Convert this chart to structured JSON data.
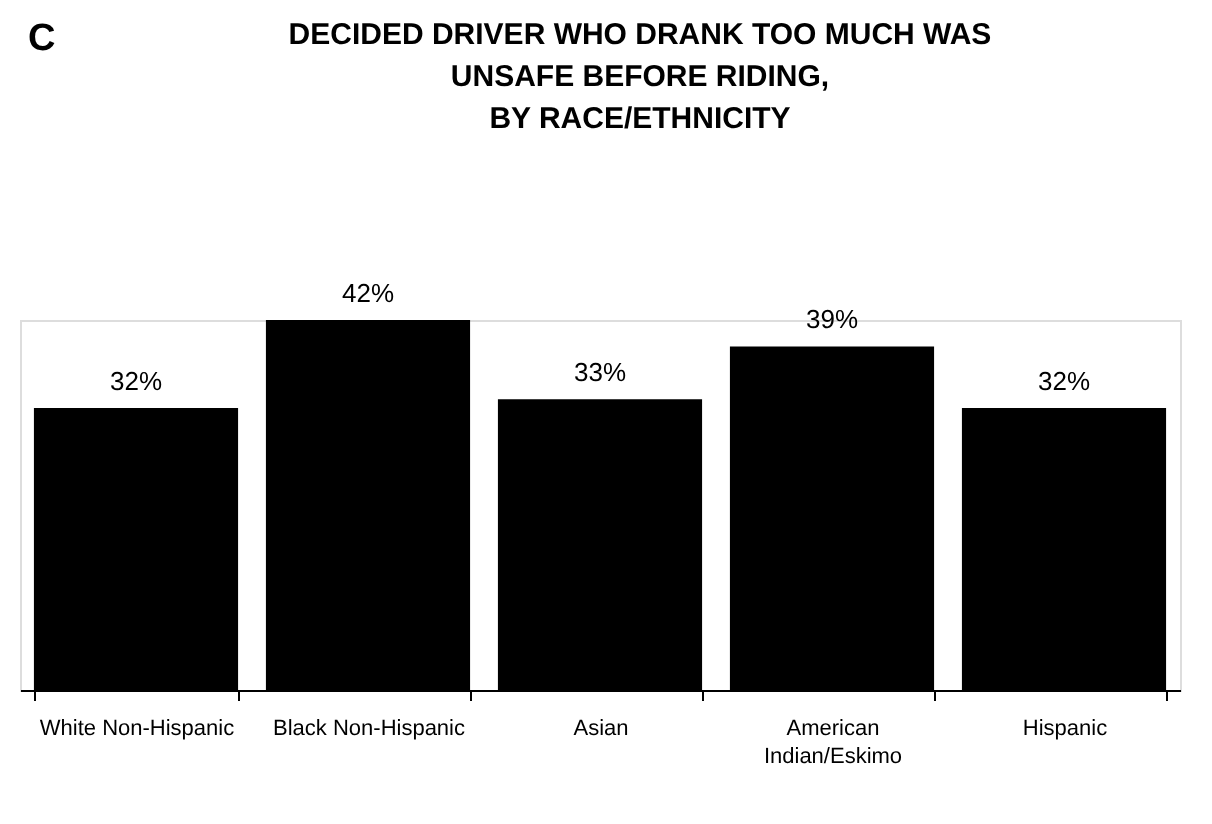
{
  "chart_data": {
    "type": "bar",
    "title": "DECIDED DRIVER WHO DRANK TOO MUCH WAS UNSAFE BEFORE RIDING, BY RACE/ETHNICITY",
    "annotations": [
      "C"
    ],
    "categories": [
      "White Non-Hispanic",
      "Black Non-Hispanic",
      "Asian",
      "American Indian/Eskimo",
      "Hispanic"
    ],
    "values": [
      32,
      42,
      33,
      39,
      32
    ],
    "value_labels": [
      "32%",
      "42%",
      "33%",
      "39%",
      "32%"
    ],
    "color": "#000000"
  }
}
